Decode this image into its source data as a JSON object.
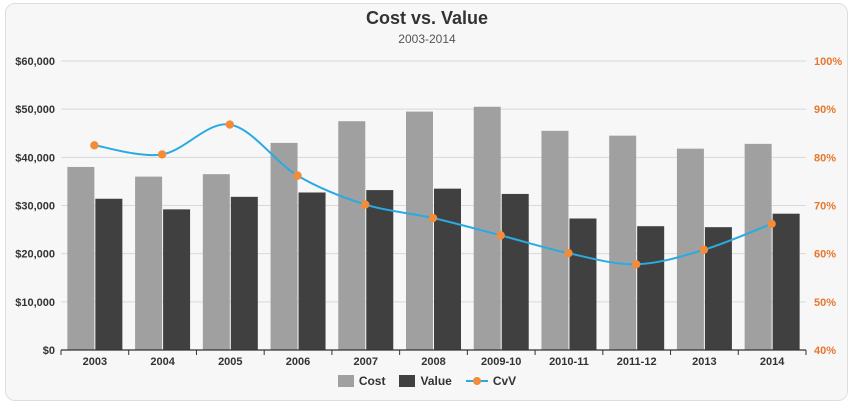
{
  "chart_data": {
    "type": "bar",
    "title": "Cost vs. Value",
    "subtitle": "2003-2014",
    "categories": [
      "2003",
      "2004",
      "2005",
      "2006",
      "2007",
      "2008",
      "2009-10",
      "2010-11",
      "2011-12",
      "2013",
      "2014"
    ],
    "series": [
      {
        "name": "Cost",
        "type": "bar",
        "axis": "left",
        "color": "#a0a0a0",
        "values": [
          38000,
          36000,
          36500,
          43000,
          47500,
          49500,
          50500,
          45500,
          44500,
          41800,
          42800
        ]
      },
      {
        "name": "Value",
        "type": "bar",
        "axis": "left",
        "color": "#404040",
        "values": [
          31400,
          29200,
          31800,
          32700,
          33200,
          33500,
          32400,
          27300,
          25700,
          25500,
          28300
        ]
      },
      {
        "name": "CvV",
        "type": "line",
        "axis": "right",
        "color": "#29abe2",
        "marker_color": "#f28c38",
        "values": [
          82.5,
          80.6,
          86.8,
          76.2,
          70.2,
          67.4,
          63.8,
          60.1,
          57.8,
          60.8,
          66.2
        ]
      }
    ],
    "y_left": {
      "min": 0,
      "max": 60000,
      "ticks": [
        "$0",
        "$10,000",
        "$20,000",
        "$30,000",
        "$40,000",
        "$50,000",
        "$60,000"
      ]
    },
    "y_right": {
      "min": 40,
      "max": 100,
      "ticks": [
        "40%",
        "50%",
        "60%",
        "70%",
        "80%",
        "90%",
        "100%"
      ],
      "color": "#e8772e"
    },
    "grid": true,
    "legend": "bottom-center"
  }
}
